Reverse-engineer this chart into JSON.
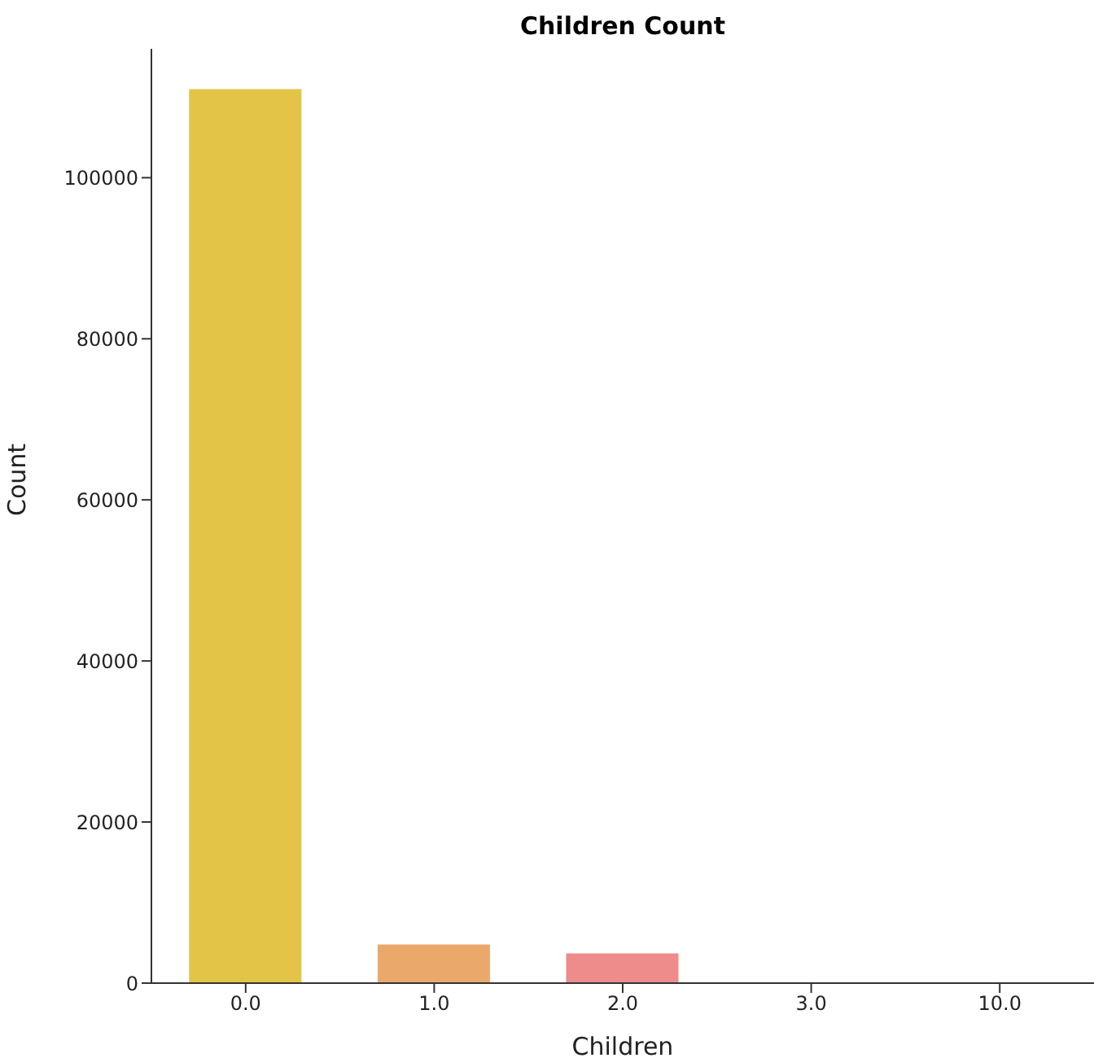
{
  "chart_data": {
    "type": "bar",
    "title": "Children Count",
    "xlabel": "Children",
    "ylabel": "Count",
    "categories": [
      "0.0",
      "1.0",
      "2.0",
      "3.0",
      "10.0"
    ],
    "values": [
      111000,
      4800,
      3700,
      0,
      0
    ],
    "colors": [
      "#e3c447",
      "#eaa96a",
      "#ee8b8b",
      "#de8fb8",
      "#c89ad4"
    ],
    "ylim": [
      0,
      116000
    ],
    "yticks": [
      0,
      20000,
      40000,
      60000,
      80000,
      100000
    ],
    "grid": false
  }
}
